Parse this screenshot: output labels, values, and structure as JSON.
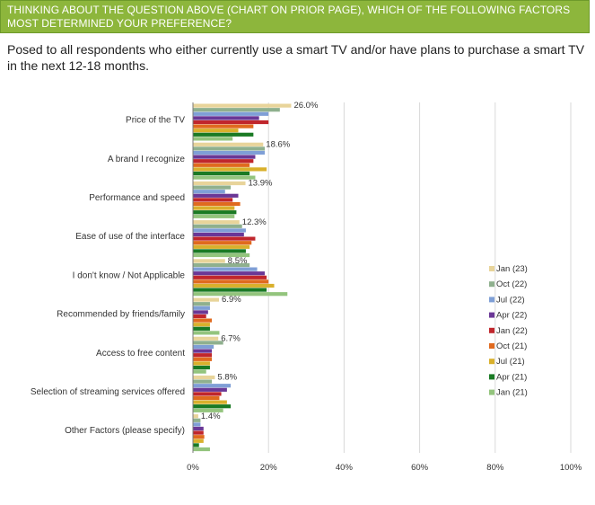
{
  "header": {
    "title": "THINKING ABOUT THE QUESTION ABOVE (CHART ON PRIOR PAGE), WHICH OF THE FOLLOWING FACTORS MOST DETERMINED YOUR PREFERENCE?"
  },
  "subtitle": "Posed to all respondents who either currently use a smart TV and/or have plans to purchase a smart TV in the next 12-18 months.",
  "colors": {
    "header_bg": "#8db63c"
  },
  "chart_data": {
    "type": "bar",
    "orientation": "horizontal",
    "categories": [
      "Price of the TV",
      "A brand I recognize",
      "Performance and speed",
      "Ease of use of the interface",
      "I don't know / Not Applicable",
      "Recommended by friends/family",
      "Access to free content",
      "Selection of streaming services offered",
      "Other Factors (please specify)"
    ],
    "series": [
      {
        "name": "Jan (23)",
        "color": "#e8d49a",
        "values": [
          26.0,
          18.6,
          13.9,
          12.3,
          8.5,
          6.9,
          6.7,
          5.8,
          1.4
        ]
      },
      {
        "name": "Oct (22)",
        "color": "#8fb08e",
        "values": [
          23,
          19,
          10,
          13,
          15,
          4.5,
          8,
          5,
          2
        ]
      },
      {
        "name": "Jul (22)",
        "color": "#7f9fd6",
        "values": [
          20,
          19,
          8.5,
          14,
          17,
          4.5,
          5.5,
          10,
          2
        ]
      },
      {
        "name": "Apr (22)",
        "color": "#6a3796",
        "values": [
          17.5,
          16.5,
          12,
          13.5,
          19,
          4,
          5,
          9,
          2.8
        ]
      },
      {
        "name": "Jan (22)",
        "color": "#c0262c",
        "values": [
          20,
          16,
          10.5,
          16.5,
          19.5,
          3.5,
          5,
          7.5,
          2.8
        ]
      },
      {
        "name": "Oct (21)",
        "color": "#e06a1e",
        "values": [
          16,
          15,
          12.5,
          15.5,
          20,
          5,
          5,
          7,
          3
        ]
      },
      {
        "name": "Jul (21)",
        "color": "#d9b02c",
        "values": [
          12,
          19.5,
          11,
          15,
          21.5,
          4.5,
          4.5,
          9,
          2.8
        ]
      },
      {
        "name": "Apr (21)",
        "color": "#1a7a24",
        "values": [
          16,
          15,
          11.5,
          14,
          19.5,
          4.5,
          4.5,
          10,
          1.6
        ]
      },
      {
        "name": "Jan (21)",
        "color": "#93c47d",
        "values": [
          10.5,
          16.5,
          11,
          15,
          25,
          7,
          3.5,
          8,
          4.5
        ]
      }
    ],
    "data_labels": [
      "26.0%",
      "18.6%",
      "13.9%",
      "12.3%",
      "8.5%",
      "6.9%",
      "6.7%",
      "5.8%",
      "1.4%"
    ],
    "x_ticks": [
      "0%",
      "20%",
      "40%",
      "60%",
      "80%",
      "100%"
    ],
    "xlim": [
      0,
      100
    ],
    "xlabel": "",
    "ylabel": "",
    "grid": true,
    "legend_position": "right"
  }
}
